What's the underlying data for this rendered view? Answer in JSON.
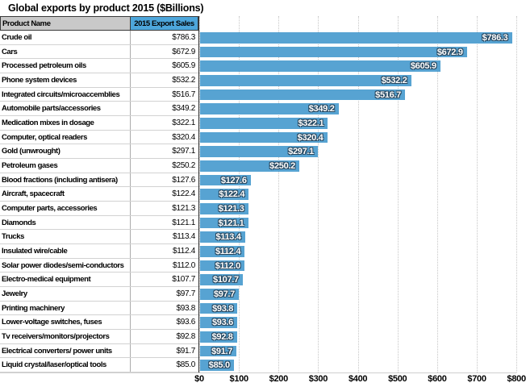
{
  "app": {
    "title": "Global exports by product 2015 ($Billions)"
  },
  "table": {
    "header": {
      "product": "Product Name",
      "sales": "2015 Export Sales"
    }
  },
  "colors": {
    "bar": "#57a3d2",
    "header_sales_bg": "#4da6db",
    "header_product_bg": "#c9c9c9",
    "bar_label_text": "#ffffff",
    "bar_label_outline": "#27455c",
    "gridline": "#c6c6c6"
  },
  "chart_data": {
    "type": "bar",
    "orientation": "horizontal",
    "title": "Global exports by product 2015 ($Billions)",
    "categories": [
      "Crude oil",
      "Cars",
      "Processed petroleum oils",
      "Phone system devices",
      "Integrated circuits/microaccemblies",
      "Automobile parts/accessories",
      "Medication mixes in dosage",
      "Computer, optical readers",
      "Gold (unwrought)",
      "Petroleum gases",
      "Blood fractions (including antisera)",
      "Aircraft, spacecraft",
      "Computer parts, accessories",
      "Diamonds",
      "Trucks",
      "Insulated wire/cable",
      "Solar power diodes/semi-conductors",
      "Electro-medical equipment",
      "Jewelry",
      "Printing machinery",
      "Lower-voltage switches, fuses",
      "Tv receivers/monitors/projectors",
      "Electrical converters/ power units",
      "Liquid crystal/laser/optical tools"
    ],
    "values": [
      786.3,
      672.9,
      605.9,
      532.2,
      516.7,
      349.2,
      322.1,
      320.4,
      297.1,
      250.2,
      127.6,
      122.4,
      121.3,
      121.1,
      113.4,
      112.4,
      112.0,
      107.7,
      97.7,
      93.8,
      93.6,
      92.8,
      91.7,
      85.0
    ],
    "data_labels": [
      "$786.3",
      "$672.9",
      "$605.9",
      "$532.2",
      "$516.7",
      "$349.2",
      "$322.1",
      "$320.4",
      "$297.1",
      "$250.2",
      "$127.6",
      "$122.4",
      "$121.3",
      "$121.1",
      "$113.4",
      "$112.4",
      "$112.0",
      "$107.7",
      "$97.7",
      "$93.8",
      "$93.6",
      "$92.8",
      "$91.7",
      "$85.0"
    ],
    "xlabel": "",
    "ylabel": "",
    "xlim": [
      0,
      800
    ],
    "xticks": [
      "$0",
      "$100",
      "$200",
      "$300",
      "$400",
      "$500",
      "$600",
      "$700",
      "$800"
    ],
    "grid": "vertical dotted gridlines at $100 intervals",
    "legend": false,
    "data_labels_position": "inside-end"
  }
}
